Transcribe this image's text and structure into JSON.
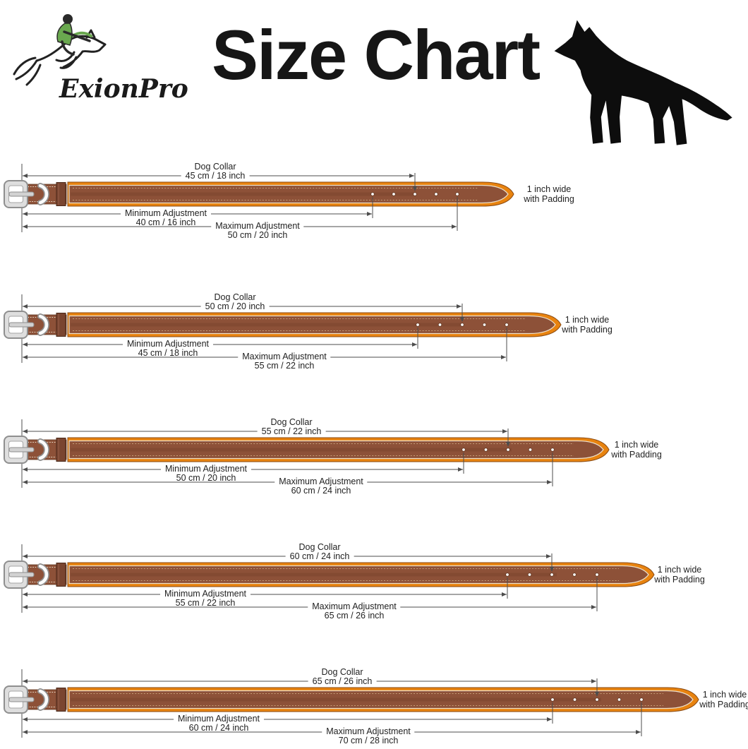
{
  "title": "Size Chart",
  "brand": "ExionPro",
  "labels": {
    "dog_collar": "Dog Collar",
    "min_adjustment": "Minimum Adjustment",
    "max_adjustment": "Maximum Adjustment"
  },
  "note": {
    "line1": "1 inch wide",
    "line2": "with Padding"
  },
  "rows": [
    {
      "collar_size": "45 cm / 18 inch",
      "min_size": "40 cm / 16 inch",
      "max_size": "50 cm / 20 inch"
    },
    {
      "collar_size": "50 cm / 20 inch",
      "min_size": "45 cm / 18 inch",
      "max_size": "55 cm / 22 inch"
    },
    {
      "collar_size": "55 cm / 22 inch",
      "min_size": "50 cm / 20 inch",
      "max_size": "60 cm / 24 inch"
    },
    {
      "collar_size": "60 cm / 24 inch",
      "min_size": "55 cm / 22 inch",
      "max_size": "65 cm / 26 inch"
    },
    {
      "collar_size": "65 cm / 26 inch",
      "min_size": "60 cm / 24 inch",
      "max_size": "70 cm / 28 inch"
    }
  ],
  "colors": {
    "strap_brown": "#8d5138",
    "strap_shadow": "#7c462e",
    "padding_orange": "#e8830f",
    "keeper_brown": "#7a4530",
    "stitch_cream": "#ece0cc",
    "stitch_dots": "#c59e78",
    "buckle_silver": "#dedede",
    "buckle_edge": "#8f8f8f",
    "dimension_line": "#4d4d4d",
    "silhouette": "#0d0d0d",
    "logo_green": "#6aa84f",
    "logo_ink": "#222222"
  }
}
